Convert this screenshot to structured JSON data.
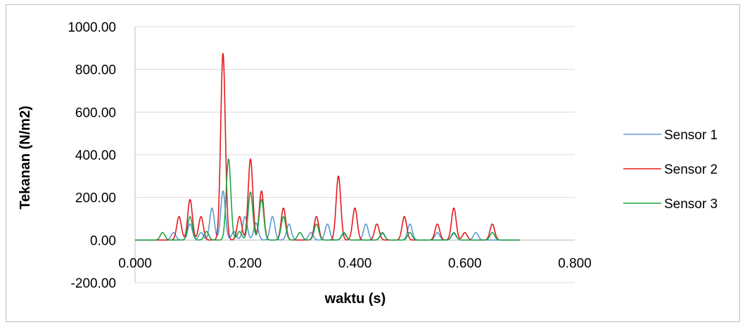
{
  "chart_data": {
    "type": "line",
    "title": "",
    "xlabel": "waktu (s)",
    "ylabel": "Tekanan (N/m2)",
    "xlim": [
      0,
      0.8
    ],
    "ylim": [
      -200,
      1000
    ],
    "x_ticks": [
      "0.000",
      "0.200",
      "0.400",
      "0.600",
      "0.800"
    ],
    "y_ticks": [
      "1000.00",
      "800.00",
      "600.00",
      "400.00",
      "200.00",
      "0.00",
      "-200.00"
    ],
    "grid": true,
    "legend_position": "right",
    "series": [
      {
        "name": "Sensor 1",
        "color": "#5b9bd5",
        "peaks": [
          [
            0.07,
            35
          ],
          [
            0.1,
            75
          ],
          [
            0.12,
            35
          ],
          [
            0.14,
            150
          ],
          [
            0.16,
            230
          ],
          [
            0.18,
            40
          ],
          [
            0.2,
            110
          ],
          [
            0.22,
            80
          ],
          [
            0.25,
            110
          ],
          [
            0.28,
            75
          ],
          [
            0.32,
            35
          ],
          [
            0.35,
            75
          ],
          [
            0.38,
            30
          ],
          [
            0.42,
            75
          ],
          [
            0.45,
            30
          ],
          [
            0.5,
            75
          ],
          [
            0.55,
            35
          ],
          [
            0.58,
            30
          ],
          [
            0.62,
            35
          ]
        ]
      },
      {
        "name": "Sensor 2",
        "color": "#e31a1c",
        "peaks": [
          [
            0.08,
            110
          ],
          [
            0.1,
            190
          ],
          [
            0.12,
            110
          ],
          [
            0.16,
            875
          ],
          [
            0.19,
            110
          ],
          [
            0.21,
            380
          ],
          [
            0.23,
            230
          ],
          [
            0.27,
            150
          ],
          [
            0.33,
            110
          ],
          [
            0.37,
            300
          ],
          [
            0.4,
            150
          ],
          [
            0.44,
            75
          ],
          [
            0.49,
            110
          ],
          [
            0.55,
            75
          ],
          [
            0.58,
            150
          ],
          [
            0.6,
            35
          ],
          [
            0.65,
            75
          ]
        ]
      },
      {
        "name": "Sensor 3",
        "color": "#21a447",
        "peaks": [
          [
            0.05,
            35
          ],
          [
            0.1,
            110
          ],
          [
            0.13,
            40
          ],
          [
            0.17,
            380
          ],
          [
            0.19,
            40
          ],
          [
            0.21,
            225
          ],
          [
            0.23,
            190
          ],
          [
            0.27,
            110
          ],
          [
            0.3,
            35
          ],
          [
            0.33,
            75
          ],
          [
            0.38,
            35
          ],
          [
            0.45,
            35
          ],
          [
            0.5,
            35
          ],
          [
            0.58,
            35
          ],
          [
            0.65,
            35
          ]
        ]
      }
    ],
    "x_end": 0.7
  }
}
